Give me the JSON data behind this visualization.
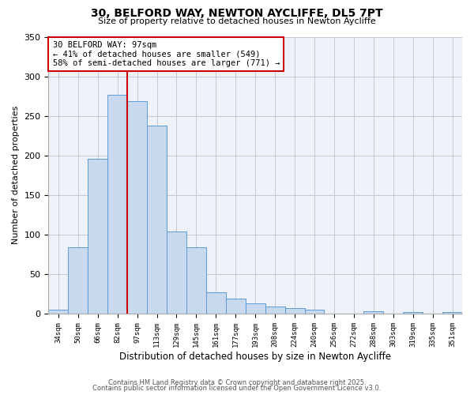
{
  "title": "30, BELFORD WAY, NEWTON AYCLIFFE, DL5 7PT",
  "subtitle": "Size of property relative to detached houses in Newton Aycliffe",
  "xlabel": "Distribution of detached houses by size in Newton Aycliffe",
  "ylabel": "Number of detached properties",
  "bar_color": "#c8d9ed",
  "bar_edge_color": "#5b9bd5",
  "background_color": "#eef2f8",
  "grid_color": "#c0c8d8",
  "annotation_box_text": "30 BELFORD WAY: 97sqm\n← 41% of detached houses are smaller (549)\n58% of semi-detached houses are larger (771) →",
  "vline_color": "#cc0000",
  "categories": [
    "34sqm",
    "50sqm",
    "66sqm",
    "82sqm",
    "97sqm",
    "113sqm",
    "129sqm",
    "145sqm",
    "161sqm",
    "177sqm",
    "193sqm",
    "208sqm",
    "224sqm",
    "240sqm",
    "256sqm",
    "272sqm",
    "288sqm",
    "303sqm",
    "319sqm",
    "335sqm",
    "351sqm"
  ],
  "values": [
    5,
    84,
    196,
    277,
    269,
    238,
    104,
    84,
    27,
    19,
    13,
    9,
    7,
    5,
    0,
    0,
    3,
    0,
    2,
    0,
    2
  ],
  "vline_index": 4,
  "ylim": [
    0,
    350
  ],
  "yticks": [
    0,
    50,
    100,
    150,
    200,
    250,
    300,
    350
  ],
  "footer1": "Contains HM Land Registry data © Crown copyright and database right 2025.",
  "footer2": "Contains public sector information licensed under the Open Government Licence v3.0."
}
